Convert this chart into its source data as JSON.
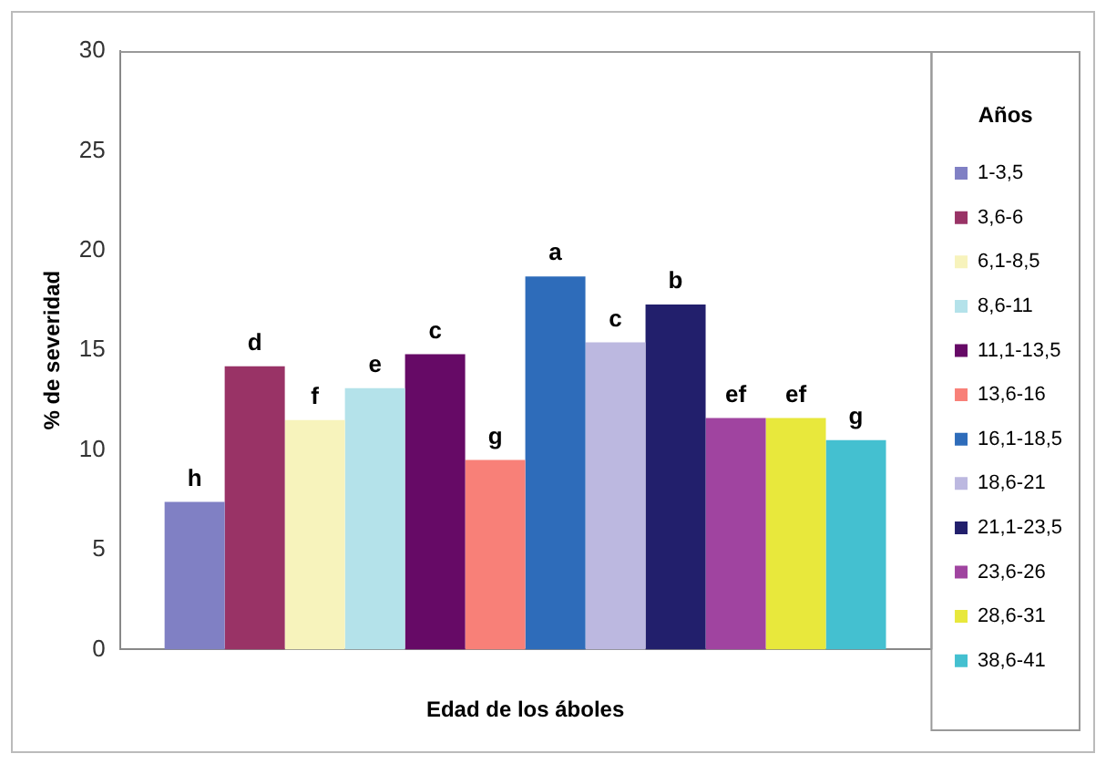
{
  "chart_data": {
    "type": "bar",
    "xlabel": "Edad de los áboles",
    "ylabel": "% de severidad",
    "legend_title": "Años",
    "categories": [
      null
    ],
    "ylim": [
      0,
      30
    ],
    "yticks": [
      0,
      5,
      10,
      15,
      20,
      25,
      30
    ],
    "grid": false,
    "legend": "right",
    "series": [
      {
        "name": "1-3,5",
        "color": "#8080c4",
        "values": [
          7.4
        ],
        "value_labels": [
          "h"
        ]
      },
      {
        "name": "3,6-6",
        "color": "#993366",
        "values": [
          14.2
        ],
        "value_labels": [
          "d"
        ]
      },
      {
        "name": "6,1-8,5",
        "color": "#f7f3bc",
        "values": [
          11.5
        ],
        "value_labels": [
          "f"
        ]
      },
      {
        "name": "8,6-11",
        "color": "#b4e2ea",
        "values": [
          13.1
        ],
        "value_labels": [
          "e"
        ]
      },
      {
        "name": "11,1-13,5",
        "color": "#660a66",
        "values": [
          14.8
        ],
        "value_labels": [
          "c"
        ]
      },
      {
        "name": "13,6-16",
        "color": "#f88078",
        "values": [
          9.5
        ],
        "value_labels": [
          "g"
        ]
      },
      {
        "name": "16,1-18,5",
        "color": "#2e6cba",
        "values": [
          18.7
        ],
        "value_labels": [
          "a"
        ]
      },
      {
        "name": "18,6-21",
        "color": "#bcb8e0",
        "values": [
          15.4
        ],
        "value_labels": [
          "c"
        ]
      },
      {
        "name": "21,1-23,5",
        "color": "#221f6c",
        "values": [
          17.3
        ],
        "value_labels": [
          "b"
        ]
      },
      {
        "name": "23,6-26",
        "color": "#a044a0",
        "values": [
          11.6
        ],
        "value_labels": [
          "ef"
        ]
      },
      {
        "name": "28,6-31",
        "color": "#e8e83c",
        "values": [
          11.6
        ],
        "value_labels": [
          "ef"
        ]
      },
      {
        "name": "38,6-41",
        "color": "#44c0d0",
        "values": [
          10.5
        ],
        "value_labels": [
          "g"
        ]
      }
    ]
  }
}
